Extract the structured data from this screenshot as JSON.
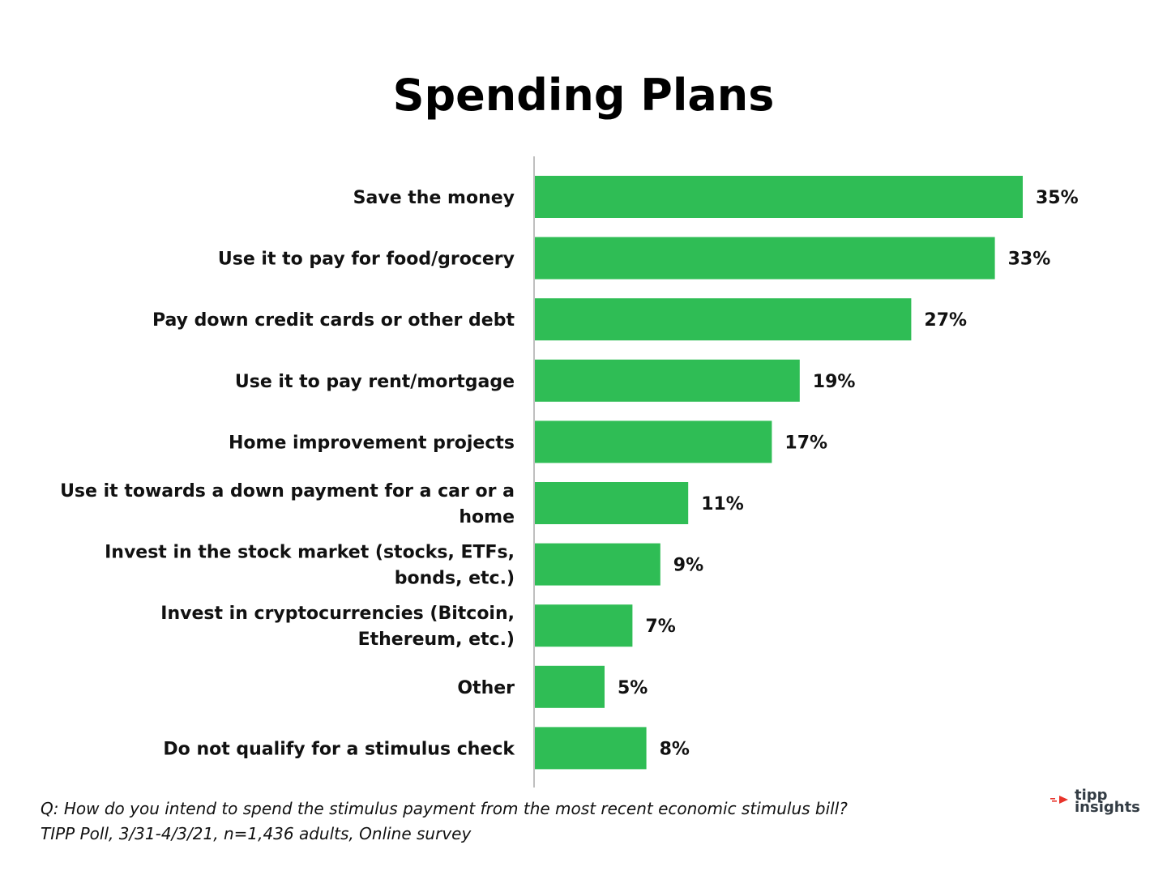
{
  "chart_data": {
    "type": "bar",
    "orientation": "horizontal",
    "title": "Spending Plans",
    "categories": [
      [
        "Save the money"
      ],
      [
        "Use it to pay for food/grocery"
      ],
      [
        "Pay down credit cards or other debt"
      ],
      [
        "Use it to pay rent/mortgage"
      ],
      [
        "Home improvement projects"
      ],
      [
        "Use it towards a down payment for a car or a",
        "home"
      ],
      [
        "Invest in the stock market (stocks, ETFs,",
        "bonds, etc.)"
      ],
      [
        "Invest in cryptocurrencies (Bitcoin,",
        "Ethereum, etc.)"
      ],
      [
        "Other"
      ],
      [
        "Do not qualify for a stimulus check"
      ]
    ],
    "values": [
      35,
      33,
      27,
      19,
      17,
      11,
      9,
      7,
      5,
      8
    ],
    "value_labels": [
      "35%",
      "33%",
      "27%",
      "19%",
      "17%",
      "11%",
      "9%",
      "7%",
      "5%",
      "8%"
    ],
    "xlim": [
      0,
      35
    ],
    "bar_color": "#2fbd55",
    "axis_color": "#bfbfbf",
    "grid": false,
    "legend": "none"
  },
  "footnote": {
    "question": "Q:  How do you intend to spend the stimulus payment from the most recent economic stimulus bill?",
    "source": "TIPP Poll, 3/31-4/3/21, n=1,436 adults, Online survey"
  },
  "logo": {
    "line1": "tipp",
    "line2": "insights",
    "accent_color": "#e8332a"
  }
}
